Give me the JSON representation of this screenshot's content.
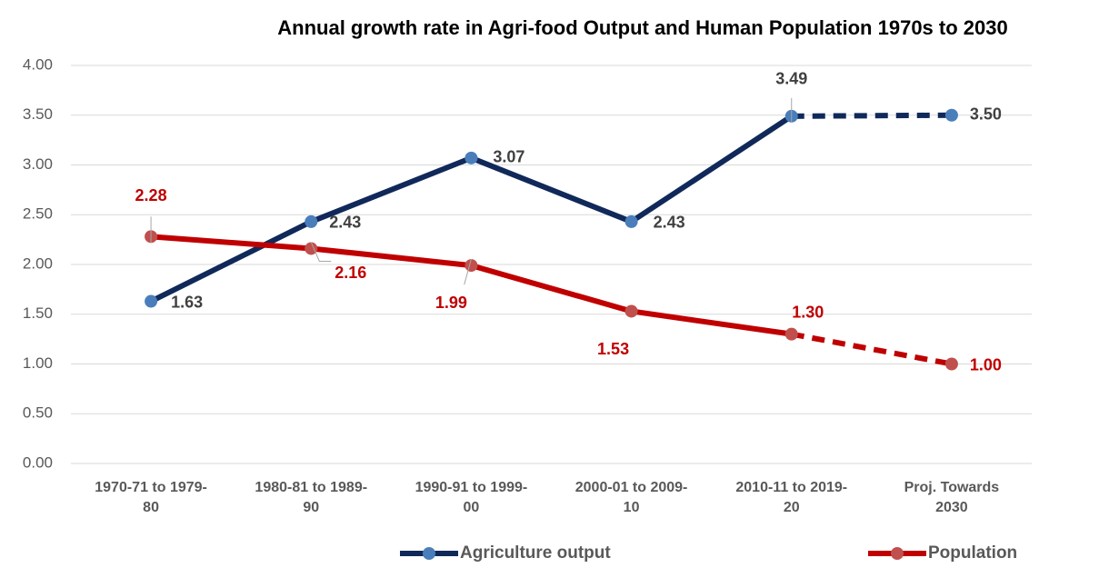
{
  "chart_data": {
    "type": "line",
    "title": "Annual growth rate in Agri-food Output and Human Population 1970s to 2030",
    "categories": [
      "1970-71 to 1979-80",
      "1980-81 to 1989-90",
      "1990-91 to 1999-00",
      "2000-01 to 2009-10",
      "2010-11 to 2019-20",
      "Proj. Towards 2030"
    ],
    "series": [
      {
        "name": "Agriculture output",
        "color": "#10295a",
        "marker_color": "#4a7ebb",
        "label_color": "#404040",
        "dashed_from_index": 4,
        "values": [
          1.63,
          2.43,
          3.07,
          2.43,
          3.49,
          3.5
        ],
        "value_labels": [
          "1.63",
          "2.43",
          "3.07",
          "2.43",
          "3.49",
          "3.50"
        ]
      },
      {
        "name": "Population",
        "color": "#c00000",
        "marker_color": "#c0504d",
        "label_color": "#c00000",
        "dashed_from_index": 4,
        "values": [
          2.28,
          2.16,
          1.99,
          1.53,
          1.3,
          1.0
        ],
        "value_labels": [
          "2.28",
          "2.16",
          "1.99",
          "1.53",
          "1.30",
          "1.00"
        ]
      }
    ],
    "ylim": [
      0,
      4
    ],
    "yticks": [
      {
        "value": 0,
        "label": "0.00"
      },
      {
        "value": 0.5,
        "label": "0.50"
      },
      {
        "value": 1,
        "label": "1.00"
      },
      {
        "value": 1.5,
        "label": "1.50"
      },
      {
        "value": 2,
        "label": "2.00"
      },
      {
        "value": 2.5,
        "label": "2.50"
      },
      {
        "value": 3,
        "label": "3.00"
      },
      {
        "value": 3.5,
        "label": "3.50"
      },
      {
        "value": 4,
        "label": "4.00"
      }
    ],
    "grid": true,
    "legend": "bottom"
  }
}
